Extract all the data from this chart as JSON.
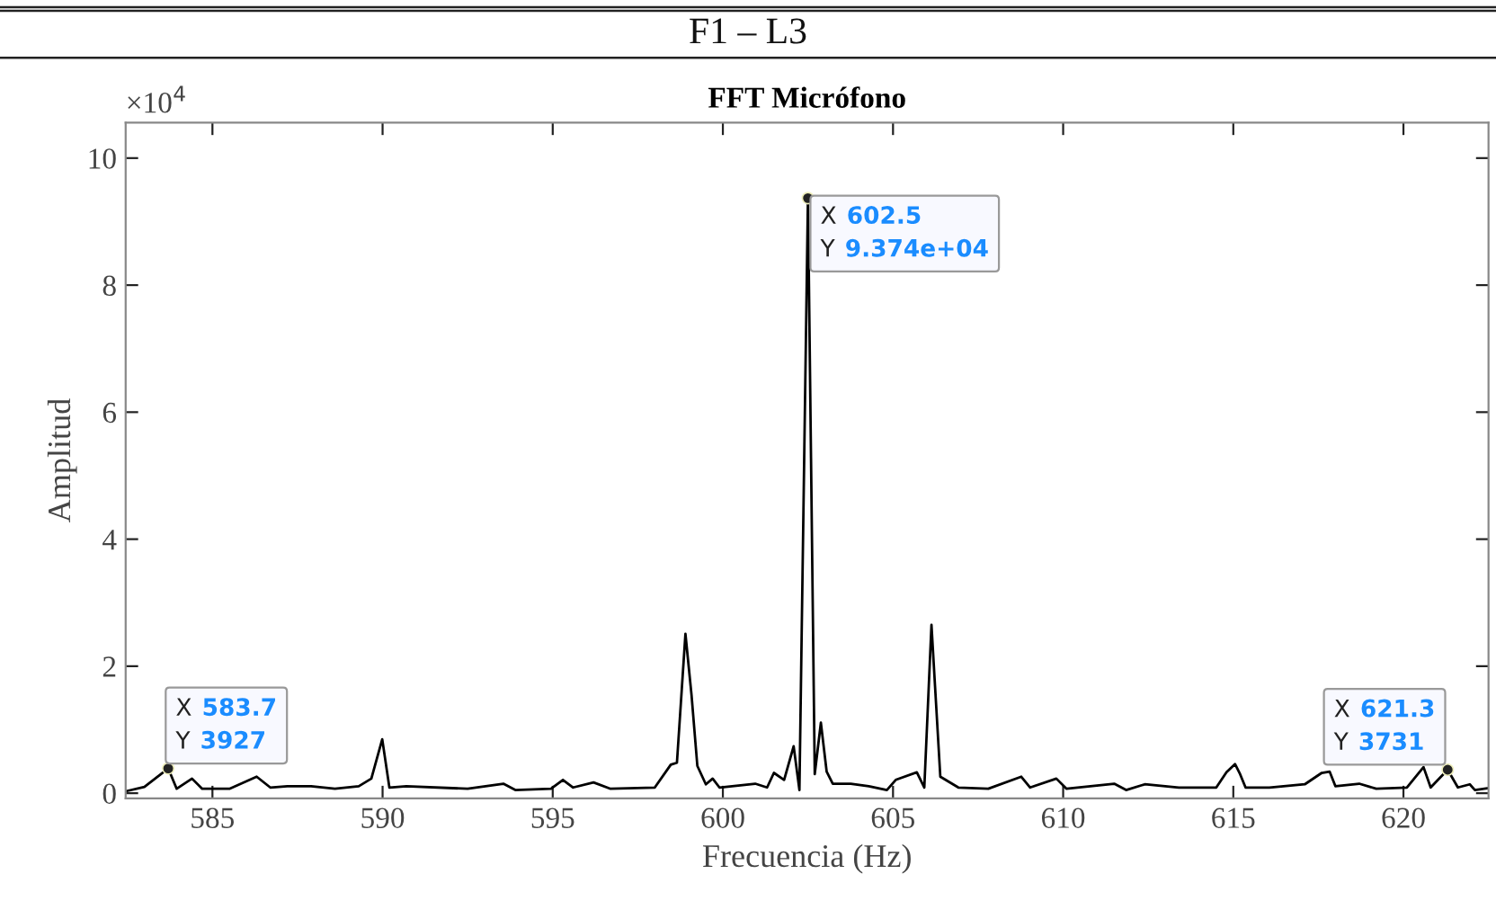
{
  "chart_data": {
    "type": "line",
    "title": "F1 – L3",
    "subtitle": "FFT Micrófono",
    "xlabel": "Frecuencia (Hz)",
    "ylabel": "Amplitud",
    "xlim": [
      582.45,
      622.5
    ],
    "xticks": [
      585,
      590,
      595,
      600,
      605,
      610,
      615,
      620
    ],
    "ylim": [
      -0.08,
      10.56
    ],
    "yticks": [
      0,
      2,
      4,
      6,
      8,
      10
    ],
    "grid": false,
    "marker": "none",
    "line_style": "solid",
    "series": [
      {
        "color": "#000000",
        "x": [
          582.45,
          583.0,
          583.7,
          583.95,
          584.4,
          584.7,
          585.5,
          586.3,
          586.7,
          587.2,
          587.9,
          588.6,
          589.3,
          589.67,
          589.99,
          590.2,
          590.7,
          592.5,
          593.55,
          593.9,
          594.95,
          595.3,
          595.6,
          596.2,
          596.7,
          598.0,
          598.47,
          598.65,
          598.9,
          599.08,
          599.25,
          599.5,
          599.7,
          599.9,
          600.95,
          601.3,
          601.5,
          601.8,
          602.08,
          602.25,
          602.5,
          602.7,
          602.88,
          603.05,
          603.23,
          603.76,
          604.29,
          604.82,
          605.08,
          605.7,
          605.92,
          606.13,
          606.39,
          606.92,
          607.8,
          608.77,
          609.03,
          609.8,
          610.1,
          611.5,
          611.85,
          612.4,
          613.4,
          614.5,
          614.8,
          615.05,
          615.2,
          615.36,
          616.06,
          617.1,
          617.6,
          617.83,
          618.0,
          618.7,
          619.2,
          620.1,
          620.59,
          620.8,
          621.3,
          621.6,
          621.95,
          622.1,
          622.5
        ],
        "values": [
          0.03,
          0.1,
          0.39,
          0.07,
          0.23,
          0.07,
          0.07,
          0.26,
          0.09,
          0.11,
          0.11,
          0.07,
          0.11,
          0.23,
          0.85,
          0.09,
          0.11,
          0.07,
          0.15,
          0.05,
          0.07,
          0.21,
          0.09,
          0.17,
          0.07,
          0.09,
          0.45,
          0.48,
          2.51,
          1.54,
          0.43,
          0.14,
          0.23,
          0.09,
          0.15,
          0.09,
          0.32,
          0.21,
          0.74,
          0.05,
          9.37,
          0.3,
          1.11,
          0.34,
          0.15,
          0.15,
          0.11,
          0.05,
          0.21,
          0.33,
          0.09,
          2.65,
          0.26,
          0.09,
          0.07,
          0.26,
          0.09,
          0.23,
          0.07,
          0.15,
          0.05,
          0.14,
          0.09,
          0.09,
          0.33,
          0.46,
          0.3,
          0.09,
          0.09,
          0.14,
          0.32,
          0.34,
          0.11,
          0.15,
          0.07,
          0.09,
          0.41,
          0.09,
          0.37,
          0.09,
          0.14,
          0.05,
          0.08
        ]
      }
    ],
    "annotations": [
      "×10$^{4}$",
      {
        "text": "X 583.7\nY 3927",
        "x": 583.7,
        "y": 0.39
      },
      {
        "text": "X 602.5\nY 9.374e+04",
        "x": 602.5,
        "y": 9.37
      },
      {
        "text": "X 621.3\nY 3731",
        "x": 621.3,
        "y": 0.37
      }
    ]
  }
}
